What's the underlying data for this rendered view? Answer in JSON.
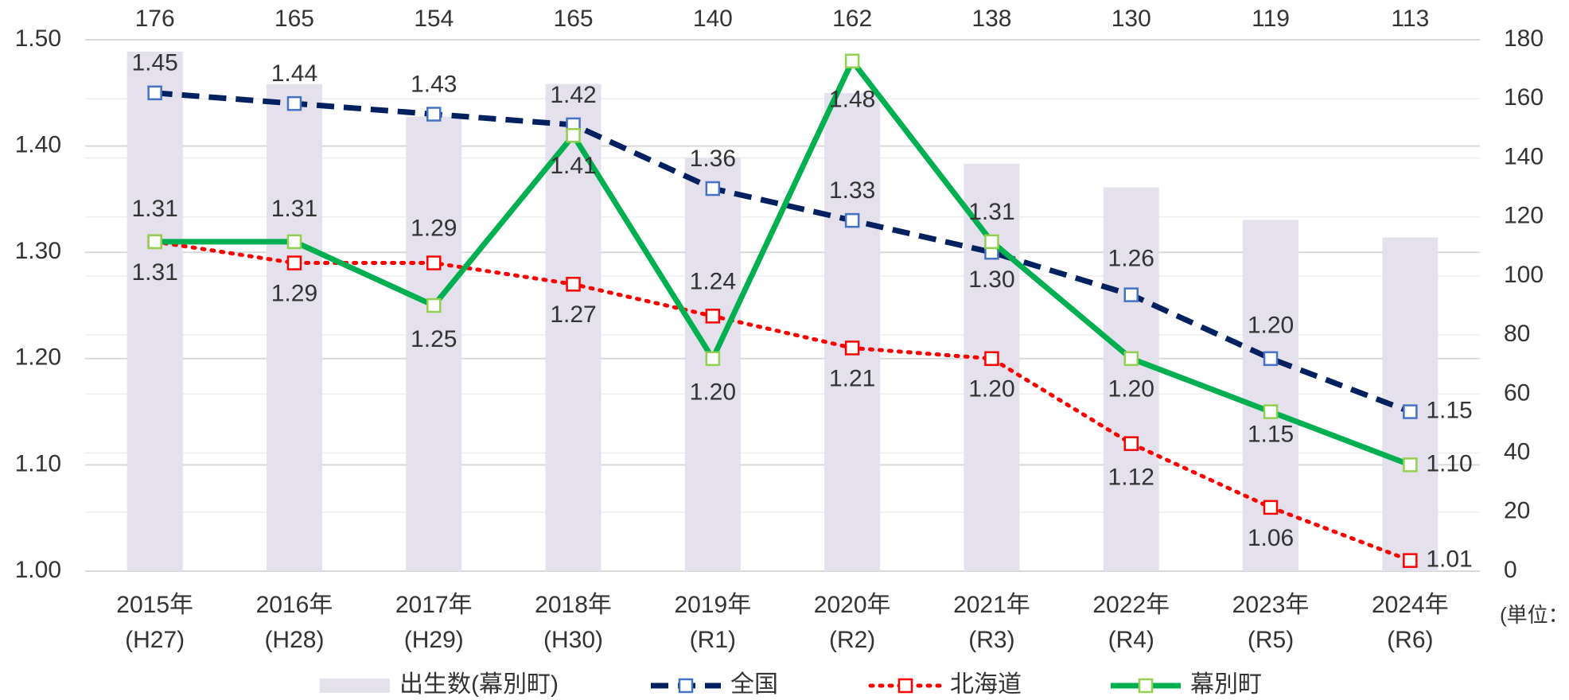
{
  "chart_data": {
    "type": "combo",
    "categories": [
      [
        "2015年",
        "(H27)"
      ],
      [
        "2016年",
        "(H28)"
      ],
      [
        "2017年",
        "(H29)"
      ],
      [
        "2018年",
        "(H30)"
      ],
      [
        "2019年",
        "(R1)"
      ],
      [
        "2020年",
        "(R2)"
      ],
      [
        "2021年",
        "(R3)"
      ],
      [
        "2022年",
        "(R4)"
      ],
      [
        "2023年",
        "(R5)"
      ],
      [
        "2024年",
        "(R6)"
      ]
    ],
    "series": [
      {
        "name": "出生数(幕別町)",
        "type": "bar",
        "axis": "y2",
        "color": "#e4e0ec",
        "values": [
          176,
          165,
          154,
          165,
          140,
          162,
          138,
          130,
          119,
          113
        ]
      },
      {
        "name": "全国",
        "type": "line",
        "dash": "dashed",
        "color": "#002060",
        "marker_color": "#4472c4",
        "values": [
          1.45,
          1.44,
          1.43,
          1.42,
          1.36,
          1.33,
          1.3,
          1.26,
          1.2,
          1.15
        ],
        "value_labels": [
          "1.45",
          "1.44",
          "1.43",
          "1.42",
          "1.36",
          "1.33",
          "1.30",
          "1.26",
          "1.20",
          "1.15"
        ]
      },
      {
        "name": "北海道",
        "type": "line",
        "dash": "dotted",
        "color": "#ff0000",
        "marker_color": "#ff0000",
        "values": [
          1.31,
          1.29,
          1.29,
          1.27,
          1.24,
          1.21,
          1.2,
          1.12,
          1.06,
          1.01
        ],
        "value_labels": [
          "1.31",
          "1.29",
          "1.29",
          "1.27",
          "1.24",
          "1.21",
          "1.20",
          "1.12",
          "1.06",
          "1.01"
        ]
      },
      {
        "name": "幕別町",
        "type": "line",
        "dash": "solid",
        "color": "#00b050",
        "marker_color": "#92d050",
        "values": [
          1.31,
          1.31,
          1.25,
          1.41,
          1.2,
          1.48,
          1.31,
          1.2,
          1.15,
          1.1
        ],
        "value_labels": [
          "1.31",
          "1.31",
          "1.25",
          "1.41",
          "1.20",
          "1.48",
          "1.31",
          "1.20",
          "1.15",
          "1.10"
        ]
      }
    ],
    "ylim": [
      1.0,
      1.5
    ],
    "yticks": [
      {
        "value": 1.0,
        "label": "1.00"
      },
      {
        "value": 1.1,
        "label": "1.10"
      },
      {
        "value": 1.2,
        "label": "1.20"
      },
      {
        "value": 1.3,
        "label": "1.30"
      },
      {
        "value": 1.4,
        "label": "1.40"
      },
      {
        "value": 1.5,
        "label": "1.50"
      }
    ],
    "y2lim": [
      0,
      180
    ],
    "y2ticks": [
      0,
      20,
      40,
      60,
      80,
      100,
      120,
      140,
      160,
      180
    ],
    "y2_unit_label": "(単位：人)",
    "grid": true,
    "legend": "bottom"
  }
}
